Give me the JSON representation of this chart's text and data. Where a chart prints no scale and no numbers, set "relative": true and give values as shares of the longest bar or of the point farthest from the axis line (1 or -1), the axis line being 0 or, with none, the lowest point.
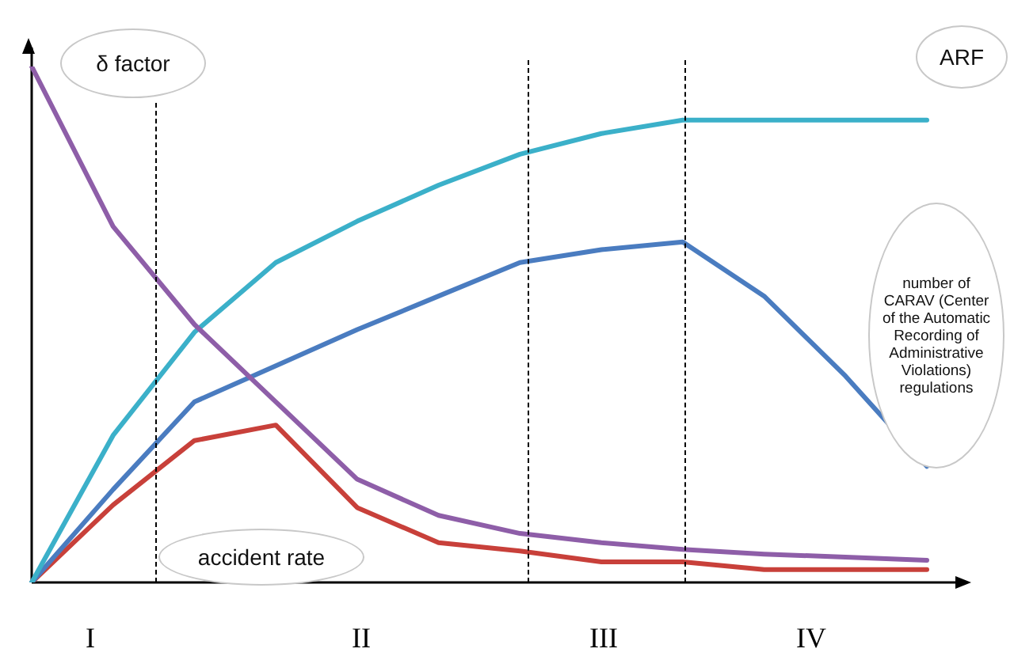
{
  "chart_data": {
    "type": "line",
    "relative": true,
    "categories": [
      null,
      null,
      null,
      null,
      null,
      null,
      null,
      null,
      null,
      null,
      null,
      null
    ],
    "line_style": "solid",
    "series": [
      {
        "name": "δ factor",
        "color": "#8e5ea8",
        "values": [
          1.0,
          0.69,
          0.5,
          0.35,
          0.2,
          0.13,
          0.095,
          0.077,
          0.064,
          0.055,
          0.049,
          0.043
        ]
      },
      {
        "name": "ARF",
        "color": "#3bb0c9",
        "values": [
          0,
          0.285,
          0.485,
          0.62,
          0.7,
          0.77,
          0.83,
          0.87,
          0.896,
          0.896,
          0.896,
          0.896
        ]
      },
      {
        "name": "number of CARAV (Center of the Automatic Recording of Administrative Violations) regulations",
        "color": "#4a7cc0",
        "values": [
          0,
          0.18,
          0.35,
          0.42,
          0.49,
          0.555,
          0.62,
          0.645,
          0.66,
          0.555,
          0.4,
          0.225
        ]
      },
      {
        "name": "accident rate",
        "color": "#c8403a",
        "values": [
          0,
          0.15,
          0.275,
          0.305,
          0.145,
          0.077,
          0.061,
          0.04,
          0.04,
          0.025,
          0.025,
          0.025
        ]
      }
    ],
    "annotations": [
      "I",
      "II",
      "III",
      "IV"
    ]
  }
}
